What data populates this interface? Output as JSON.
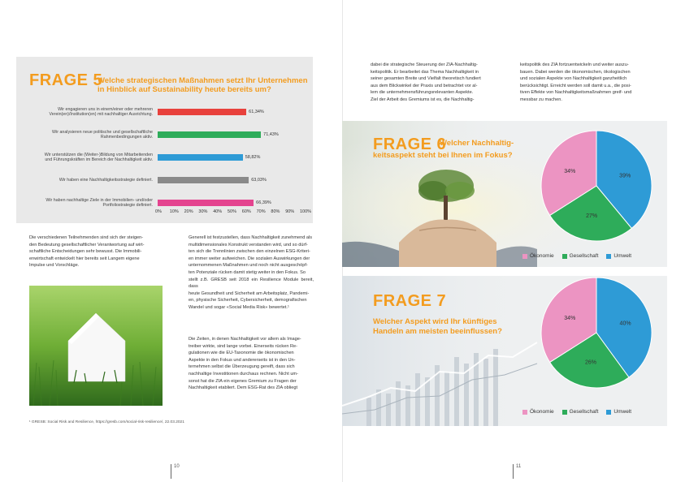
{
  "frage5": {
    "number": "FRAGE 5",
    "question_line1": "Welche strategischen Maßnahmen setzt Ihr Unternehmen",
    "question_line2": "in Hinblick auf Sustainability heute bereits um?",
    "colors": {
      "red": "#e8413c",
      "green": "#2eac5a",
      "blue": "#2e9bd6",
      "grey": "#8a8a8a",
      "pink": "#e4448f"
    },
    "chart_data": {
      "type": "bar",
      "orientation": "horizontal",
      "categories": [
        [
          "Wir engagieren uns in einem/einer oder mehreren",
          "Verein(en)/Institution(en) mit nachhaltiger Ausrichtung."
        ],
        [
          "Wir analysieren neue politische und gesellschaftliche",
          "Rahmenbedingungen aktiv."
        ],
        [
          "Wir unterstützen die (Weiter-)Bildung von Mitarbeitenden",
          "und Führungskräften im Bereich der Nachhaltigkeit aktiv."
        ],
        [
          "Wir haben eine Nachhaltigkeitsstrategie definiert."
        ],
        [
          "Wir haben nachhaltige Ziele in der Immobilien- und/oder",
          "Portfoliostrategie definiert."
        ]
      ],
      "values": [
        61.34,
        71.43,
        58.82,
        63.03,
        66.39
      ],
      "value_labels": [
        "61,34%",
        "71,43%",
        "58,82%",
        "63,03%",
        "66,39%"
      ],
      "colors": [
        "#e8413c",
        "#2eac5a",
        "#2e9bd6",
        "#8a8a8a",
        "#e4448f"
      ],
      "xlim": [
        0,
        100
      ],
      "ticks": [
        "0%",
        "10%",
        "20%",
        "30%",
        "40%",
        "50%",
        "60%",
        "70%",
        "80%",
        "90%",
        "100%"
      ]
    }
  },
  "left_col1": [
    "Die verschiedenen Teilnehmenden sind sich der steigen-",
    "den Bedeutung gesellschaftlicher Verantwortung auf wirt-",
    "schaftliche Entscheidungen sehr bewusst. Die Immobili-",
    "enwirtschaft entwickelt hier bereits seit Langem eigene",
    "Impulse und Vorschläge."
  ],
  "left_col2_p1": [
    "Generell ist festzustellen, dass Nachhaltigkeit zunehmend als",
    "multidimensionales Konstrukt verstanden wird, und so dürf-",
    "ten sich die Trennlinien zwischen den einzelnen ESG-Kriteri-",
    "en immer weiter aufweichen. Die sozialen Auswirkungen der",
    "unternommenen Maßnahmen und noch nicht ausgeschöpf-",
    "ten Potenziale rücken damit stetig weiter in den Fokus. So",
    "stellt z.B. GRESB seit 2018 ein Resilience Module bereit, dass",
    "heute Gesundheit und Sicherheit am Arbeitsplatz, Pandemi-",
    "en, physische Sicherheit, Cybersicherheit, demografischen",
    "Wandel und sogar «Social Media Risk» bewertet.¹"
  ],
  "left_col2_p2": [
    "Die Zeiten, in denen Nachhaltigkeit vor allem als Image-",
    "treiber wirkte, sind lange vorbei. Einerseits rücken Re-",
    "gulationen wie die EU-Taxonomie die ökonomischen",
    "Aspekte in den Fokus und andererseits ist in den Un-",
    "ternehmen selbst die Überzeugung gereift, dass sich",
    "nachhaltige Investitionen durchaus rechnen. Nicht um-",
    "sonst hat die ZIA ein eigenes Gremium zu Fragen der",
    "Nachhaltigkeit etabliert. Dem ESG-Rat des ZIA obliegt"
  ],
  "footnote": "¹ GRESB: Social Risk and Resilience, https://gresb.com/social-risk-resilience/, 22.03.2021",
  "right_col1": [
    "dabei die strategische Steuerung der ZIA-Nachhaltig-",
    "keitspolitik. Er bearbeitet das Thema Nachhaltigkeit in",
    "seiner gesamten Breite und Vielfalt theoretisch fundiert",
    "aus dem Blickwinkel der Praxis und betrachtet vor al-",
    "lem die unternehmensführungsrelevanten Aspekte.",
    "Ziel der Arbeit des Gremiums ist es, die Nachhaltig-"
  ],
  "right_col2": [
    "keitspolitik des ZIA fortzuentwickeln und weiter auszu-",
    "bauen. Dabei werden die ökonomischen, ökologischen",
    "und sozialen Aspekte von Nachhaltigkeit ganzheitlich",
    "berücksichtigt. Erreicht werden soll damit u.a., die posi-",
    "tiven Effekte von Nachhaltigkeitsmaßnahmen greif- und",
    "messbar zu machen."
  ],
  "frage6": {
    "number": "FRAGE 6",
    "question_line1": "Welcher Nachhaltig-",
    "question_line2": "keitsaspekt steht bei Ihnen im Fokus?",
    "chart_data": {
      "type": "pie",
      "categories": [
        "Ökonomie",
        "Gesellschaft",
        "Umwelt"
      ],
      "values": [
        34,
        27,
        39
      ],
      "value_labels": [
        "34%",
        "27%",
        "39%"
      ],
      "colors": [
        "#ec94c2",
        "#2eac5a",
        "#2e9bd6"
      ]
    }
  },
  "frage7": {
    "number": "FRAGE 7",
    "question_line1": "Welcher Aspekt wird Ihr künftiges",
    "question_line2": "Handeln am meisten beeinflussen?",
    "chart_data": {
      "type": "pie",
      "categories": [
        "Ökonomie",
        "Gesellschaft",
        "Umwelt"
      ],
      "values": [
        34,
        26,
        40
      ],
      "value_labels": [
        "34%",
        "26%",
        "40%"
      ],
      "colors": [
        "#ec94c2",
        "#2eac5a",
        "#2e9bd6"
      ]
    }
  },
  "page_numbers": {
    "left": "10",
    "right": "11"
  }
}
